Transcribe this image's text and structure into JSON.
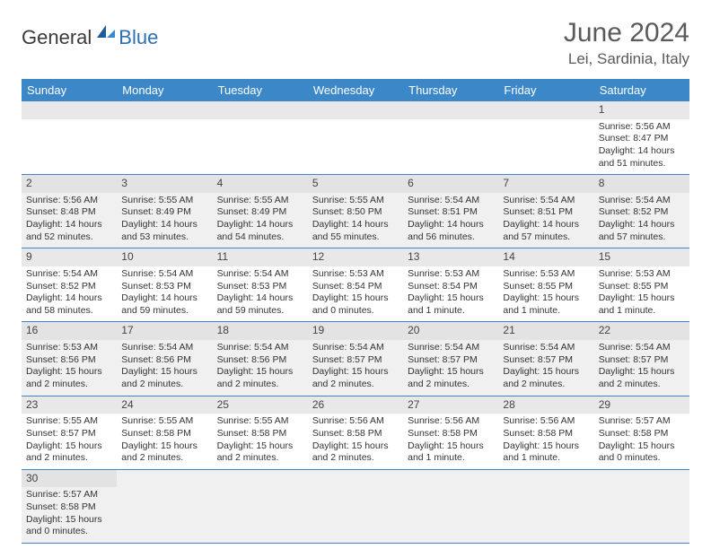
{
  "logo": {
    "text_dark": "General",
    "text_blue": "Blue"
  },
  "title": "June 2024",
  "location": "Lei, Sardinia, Italy",
  "colors": {
    "header_bg": "#3b87c8",
    "header_text": "#ffffff",
    "row_even": "#f0f0f0",
    "row_odd": "#ffffff",
    "daynum_bg": "#e8e8e8",
    "border": "#3b87c8",
    "logo_blue": "#2b6fb5",
    "title_color": "#5a5a5a"
  },
  "weekdays": [
    "Sunday",
    "Monday",
    "Tuesday",
    "Wednesday",
    "Thursday",
    "Friday",
    "Saturday"
  ],
  "weeks": [
    [
      null,
      null,
      null,
      null,
      null,
      null,
      {
        "n": "1",
        "sr": "Sunrise: 5:56 AM",
        "ss": "Sunset: 8:47 PM",
        "d1": "Daylight: 14 hours",
        "d2": "and 51 minutes."
      }
    ],
    [
      {
        "n": "2",
        "sr": "Sunrise: 5:56 AM",
        "ss": "Sunset: 8:48 PM",
        "d1": "Daylight: 14 hours",
        "d2": "and 52 minutes."
      },
      {
        "n": "3",
        "sr": "Sunrise: 5:55 AM",
        "ss": "Sunset: 8:49 PM",
        "d1": "Daylight: 14 hours",
        "d2": "and 53 minutes."
      },
      {
        "n": "4",
        "sr": "Sunrise: 5:55 AM",
        "ss": "Sunset: 8:49 PM",
        "d1": "Daylight: 14 hours",
        "d2": "and 54 minutes."
      },
      {
        "n": "5",
        "sr": "Sunrise: 5:55 AM",
        "ss": "Sunset: 8:50 PM",
        "d1": "Daylight: 14 hours",
        "d2": "and 55 minutes."
      },
      {
        "n": "6",
        "sr": "Sunrise: 5:54 AM",
        "ss": "Sunset: 8:51 PM",
        "d1": "Daylight: 14 hours",
        "d2": "and 56 minutes."
      },
      {
        "n": "7",
        "sr": "Sunrise: 5:54 AM",
        "ss": "Sunset: 8:51 PM",
        "d1": "Daylight: 14 hours",
        "d2": "and 57 minutes."
      },
      {
        "n": "8",
        "sr": "Sunrise: 5:54 AM",
        "ss": "Sunset: 8:52 PM",
        "d1": "Daylight: 14 hours",
        "d2": "and 57 minutes."
      }
    ],
    [
      {
        "n": "9",
        "sr": "Sunrise: 5:54 AM",
        "ss": "Sunset: 8:52 PM",
        "d1": "Daylight: 14 hours",
        "d2": "and 58 minutes."
      },
      {
        "n": "10",
        "sr": "Sunrise: 5:54 AM",
        "ss": "Sunset: 8:53 PM",
        "d1": "Daylight: 14 hours",
        "d2": "and 59 minutes."
      },
      {
        "n": "11",
        "sr": "Sunrise: 5:54 AM",
        "ss": "Sunset: 8:53 PM",
        "d1": "Daylight: 14 hours",
        "d2": "and 59 minutes."
      },
      {
        "n": "12",
        "sr": "Sunrise: 5:53 AM",
        "ss": "Sunset: 8:54 PM",
        "d1": "Daylight: 15 hours",
        "d2": "and 0 minutes."
      },
      {
        "n": "13",
        "sr": "Sunrise: 5:53 AM",
        "ss": "Sunset: 8:54 PM",
        "d1": "Daylight: 15 hours",
        "d2": "and 1 minute."
      },
      {
        "n": "14",
        "sr": "Sunrise: 5:53 AM",
        "ss": "Sunset: 8:55 PM",
        "d1": "Daylight: 15 hours",
        "d2": "and 1 minute."
      },
      {
        "n": "15",
        "sr": "Sunrise: 5:53 AM",
        "ss": "Sunset: 8:55 PM",
        "d1": "Daylight: 15 hours",
        "d2": "and 1 minute."
      }
    ],
    [
      {
        "n": "16",
        "sr": "Sunrise: 5:53 AM",
        "ss": "Sunset: 8:56 PM",
        "d1": "Daylight: 15 hours",
        "d2": "and 2 minutes."
      },
      {
        "n": "17",
        "sr": "Sunrise: 5:54 AM",
        "ss": "Sunset: 8:56 PM",
        "d1": "Daylight: 15 hours",
        "d2": "and 2 minutes."
      },
      {
        "n": "18",
        "sr": "Sunrise: 5:54 AM",
        "ss": "Sunset: 8:56 PM",
        "d1": "Daylight: 15 hours",
        "d2": "and 2 minutes."
      },
      {
        "n": "19",
        "sr": "Sunrise: 5:54 AM",
        "ss": "Sunset: 8:57 PM",
        "d1": "Daylight: 15 hours",
        "d2": "and 2 minutes."
      },
      {
        "n": "20",
        "sr": "Sunrise: 5:54 AM",
        "ss": "Sunset: 8:57 PM",
        "d1": "Daylight: 15 hours",
        "d2": "and 2 minutes."
      },
      {
        "n": "21",
        "sr": "Sunrise: 5:54 AM",
        "ss": "Sunset: 8:57 PM",
        "d1": "Daylight: 15 hours",
        "d2": "and 2 minutes."
      },
      {
        "n": "22",
        "sr": "Sunrise: 5:54 AM",
        "ss": "Sunset: 8:57 PM",
        "d1": "Daylight: 15 hours",
        "d2": "and 2 minutes."
      }
    ],
    [
      {
        "n": "23",
        "sr": "Sunrise: 5:55 AM",
        "ss": "Sunset: 8:57 PM",
        "d1": "Daylight: 15 hours",
        "d2": "and 2 minutes."
      },
      {
        "n": "24",
        "sr": "Sunrise: 5:55 AM",
        "ss": "Sunset: 8:58 PM",
        "d1": "Daylight: 15 hours",
        "d2": "and 2 minutes."
      },
      {
        "n": "25",
        "sr": "Sunrise: 5:55 AM",
        "ss": "Sunset: 8:58 PM",
        "d1": "Daylight: 15 hours",
        "d2": "and 2 minutes."
      },
      {
        "n": "26",
        "sr": "Sunrise: 5:56 AM",
        "ss": "Sunset: 8:58 PM",
        "d1": "Daylight: 15 hours",
        "d2": "and 2 minutes."
      },
      {
        "n": "27",
        "sr": "Sunrise: 5:56 AM",
        "ss": "Sunset: 8:58 PM",
        "d1": "Daylight: 15 hours",
        "d2": "and 1 minute."
      },
      {
        "n": "28",
        "sr": "Sunrise: 5:56 AM",
        "ss": "Sunset: 8:58 PM",
        "d1": "Daylight: 15 hours",
        "d2": "and 1 minute."
      },
      {
        "n": "29",
        "sr": "Sunrise: 5:57 AM",
        "ss": "Sunset: 8:58 PM",
        "d1": "Daylight: 15 hours",
        "d2": "and 0 minutes."
      }
    ],
    [
      {
        "n": "30",
        "sr": "Sunrise: 5:57 AM",
        "ss": "Sunset: 8:58 PM",
        "d1": "Daylight: 15 hours",
        "d2": "and 0 minutes."
      },
      null,
      null,
      null,
      null,
      null,
      null
    ]
  ]
}
